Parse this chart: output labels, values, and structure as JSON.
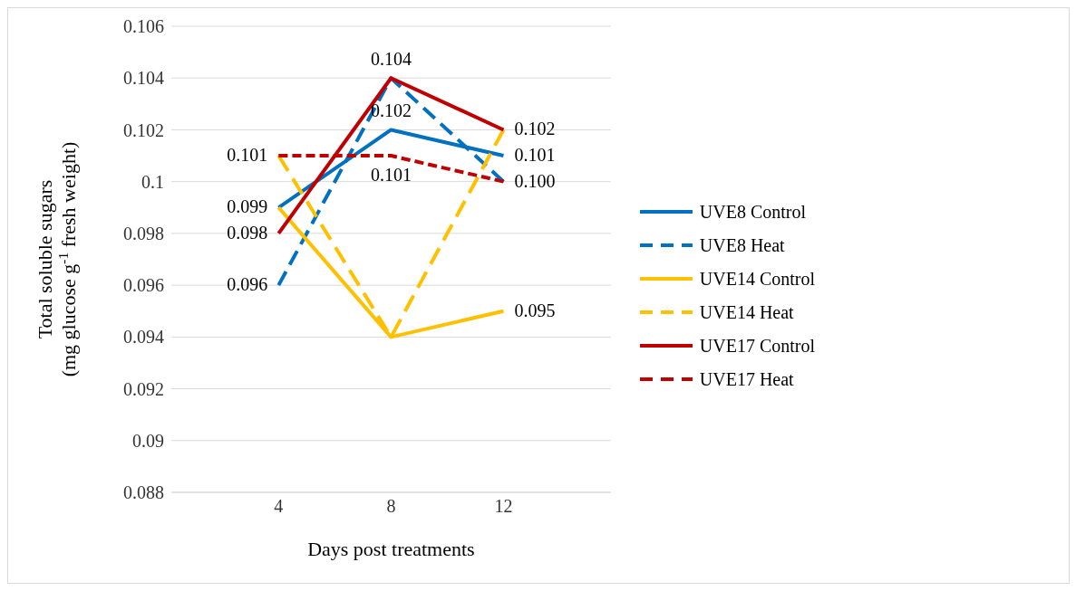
{
  "chart_data": {
    "type": "line",
    "xlabel": "Days post treatments",
    "ylabel": "Total soluble sugars\n(mg glucose g$^{-1}$ fresh weight)",
    "categories": [
      "4",
      "8",
      "12"
    ],
    "series": [
      {
        "name": "UVE8 Control",
        "color": "#0070c0",
        "line_style": "solid",
        "values": [
          0.099,
          0.102,
          0.101
        ],
        "value_labels": [
          "0.099",
          "0.102",
          "0.101"
        ]
      },
      {
        "name": "UVE8 Heat",
        "color": "#0070c0",
        "line_style": "dashed",
        "values": [
          0.096,
          0.104,
          0.1
        ],
        "value_labels": [
          "0.096",
          null,
          "0.100"
        ]
      },
      {
        "name": "UVE14 Control",
        "color": "#ffc000",
        "line_style": "solid",
        "values": [
          0.099,
          0.094,
          0.095
        ],
        "value_labels": [
          null,
          null,
          "0.095"
        ]
      },
      {
        "name": "UVE14 Heat",
        "color": "#ffc000",
        "line_style": "dashed",
        "values": [
          0.101,
          0.094,
          0.102
        ],
        "value_labels": [
          "0.101",
          null,
          "0.102"
        ]
      },
      {
        "name": "UVE17 Control",
        "color": "#c00000",
        "line_style": "solid",
        "values": [
          0.098,
          0.104,
          0.102
        ],
        "value_labels": [
          "0.098",
          "0.104",
          null
        ]
      },
      {
        "name": "UVE17 Heat",
        "color": "#c00000",
        "line_style": "dashed",
        "values": [
          0.101,
          0.101,
          0.1
        ],
        "value_labels": [
          null,
          "0.101",
          null
        ]
      }
    ],
    "ylim": [
      0.088,
      0.106
    ],
    "yticks": [
      0.088,
      0.09,
      0.092,
      0.094,
      0.096,
      0.098,
      0.1,
      0.102,
      0.104,
      0.106
    ],
    "grid": "y",
    "legend": "right",
    "marker": "none"
  }
}
